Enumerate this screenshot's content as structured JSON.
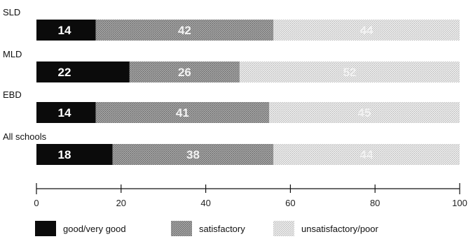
{
  "chart_data": {
    "type": "bar",
    "orientation": "horizontal",
    "stacked": true,
    "title": "",
    "xlabel": "",
    "ylabel": "",
    "xlim": [
      0,
      100
    ],
    "x_ticks": [
      "0",
      "20",
      "40",
      "60",
      "80",
      "100"
    ],
    "grid": false,
    "legend_position": "bottom",
    "categories": [
      "SLD",
      "MLD",
      "EBD",
      "All schools"
    ],
    "series": [
      {
        "name": "good/very good",
        "values": [
          14,
          22,
          14,
          18
        ],
        "color": "#000000",
        "pattern": "solid"
      },
      {
        "name": "satisfactory",
        "values": [
          42,
          26,
          41,
          38
        ],
        "color": "#8c8c8c",
        "pattern": "medium-dots"
      },
      {
        "name": "unsatisfactory/poor",
        "values": [
          44,
          52,
          45,
          44
        ],
        "color": "#c8c8c8",
        "pattern": "light-dots"
      }
    ],
    "data_labels": [
      [
        "14",
        "42",
        "44"
      ],
      [
        "22",
        "26",
        "52"
      ],
      [
        "14",
        "41",
        "45"
      ],
      [
        "18",
        "38",
        "44"
      ]
    ]
  }
}
